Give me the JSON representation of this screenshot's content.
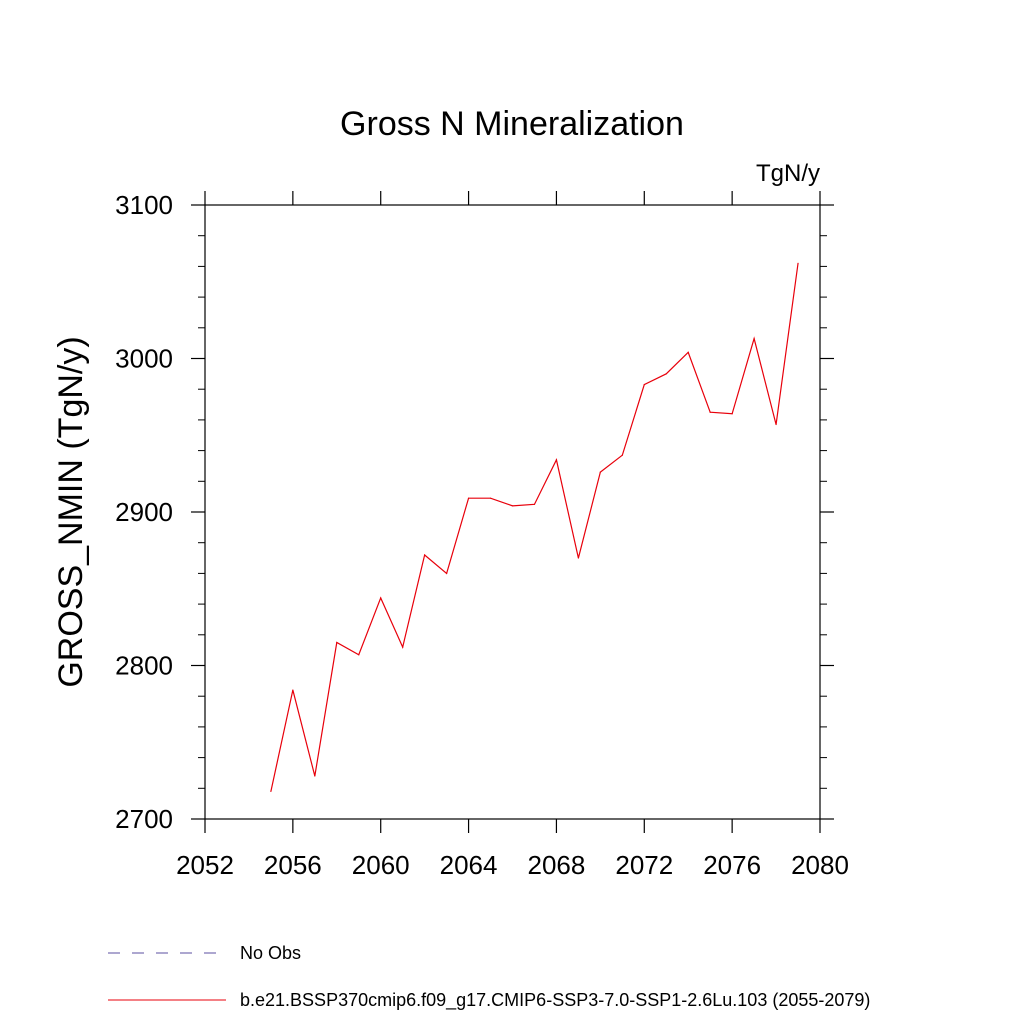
{
  "chart_data": {
    "type": "line",
    "title": "Gross N Mineralization",
    "units_label": "TgN/y",
    "ylabel": "GROSS_NMIN  (TgN/y)",
    "xlabel": "",
    "xlim": [
      2052,
      2080
    ],
    "ylim": [
      2700,
      3100
    ],
    "x_ticks": [
      2052,
      2056,
      2060,
      2064,
      2068,
      2072,
      2076,
      2080
    ],
    "x_tick_labels": [
      "2052",
      "2056",
      "2060",
      "2064",
      "2068",
      "2072",
      "2076",
      "2080"
    ],
    "y_ticks": [
      2700,
      2800,
      2900,
      3000,
      3100
    ],
    "y_tick_labels": [
      "2700",
      "2800",
      "2900",
      "3000",
      "3100"
    ],
    "grid": false,
    "legend_position": "bottom-left",
    "legend": [
      {
        "label": "No Obs",
        "color": "#5b4fa0",
        "style": "dashed"
      },
      {
        "label": "b.e21.BSSP370cmip6.f09_g17.CMIP6-SSP3-7.0-SSP1-2.6Lu.103 (2055-2079)",
        "color": "#e8000b",
        "style": "solid"
      }
    ],
    "series": [
      {
        "name": "b.e21.BSSP370cmip6.f09_g17.CMIP6-SSP3-7.0-SSP1-2.6Lu.103 (2055-2079)",
        "color": "#e8000b",
        "x": [
          2055,
          2056,
          2057,
          2058,
          2059,
          2060,
          2061,
          2062,
          2063,
          2064,
          2065,
          2066,
          2067,
          2068,
          2069,
          2070,
          2071,
          2072,
          2073,
          2074,
          2075,
          2076,
          2077,
          2078,
          2079
        ],
        "y": [
          2718,
          2784,
          2728,
          2815,
          2807,
          2844,
          2812,
          2872,
          2860,
          2909,
          2909,
          2904,
          2905,
          2934,
          2870,
          2926,
          2937,
          2983,
          2990,
          3004,
          2965,
          2964,
          3013,
          2957,
          3062
        ]
      }
    ]
  }
}
